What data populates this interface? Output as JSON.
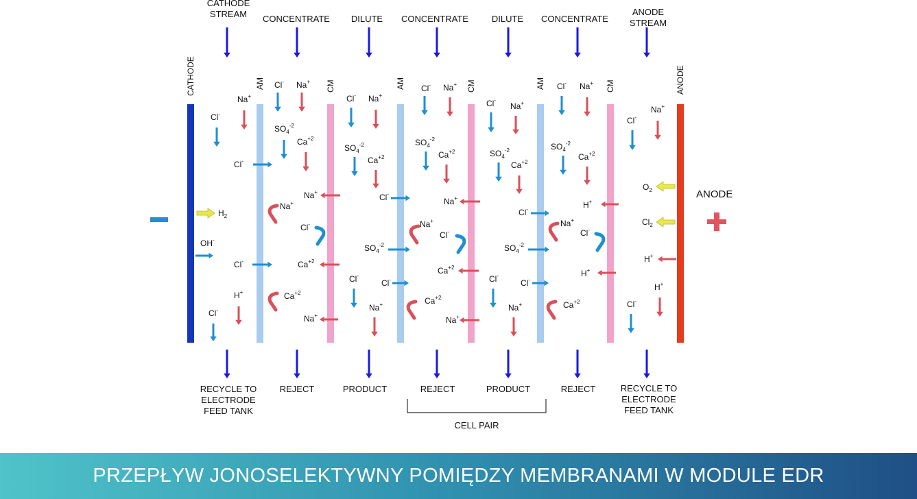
{
  "diagram": {
    "top_labels": {
      "cathode_stream": [
        "CATHODE",
        "STREAM"
      ],
      "concentrate_1": "CONCENTRATE",
      "dilute_1": "DILUTE",
      "concentrate_2": "CONCENTRATE",
      "dilute_2": "DILUTE",
      "concentrate_3": "CONCENTRATE",
      "anode_stream": [
        "ANODE",
        "STREAM"
      ]
    },
    "bottom_labels": {
      "recycle_left": [
        "RECYCLE TO",
        "ELECTRODE",
        "FEED TANK"
      ],
      "reject_1": "REJECT",
      "product_1": "PRODUCT",
      "reject_2": "REJECT",
      "product_2": "PRODUCT",
      "reject_3": "REJECT",
      "recycle_right": [
        "RECYCLE TO",
        "ELECTRODE",
        "FEED TANK"
      ]
    },
    "membrane_labels": {
      "cathode": "CATHODE",
      "anode": "ANODE",
      "am": "AM",
      "cm": "CM"
    },
    "cell_pair": "CELL PAIR",
    "anode_side_label": "ANODE",
    "ions": {
      "cl": "Cl",
      "cl_sup": "-",
      "na": "Na",
      "na_sup": "+",
      "so4": "SO",
      "so4_sub": "4",
      "so4_sup": "-2",
      "ca": "Ca",
      "ca_sup": "+2",
      "oh": "OH",
      "oh_sup": "-",
      "h": "H",
      "h_sup": "+",
      "h2": "H",
      "h2_sub": "2",
      "o2": "O",
      "o2_sub": "2",
      "cl2": "Cl",
      "cl2_sub": "2"
    },
    "colors": {
      "flow_arrow": "#1a1ae0",
      "anion_arrow": "#1e8fd0",
      "cation_arrow": "#d9505a",
      "gas_arrow": "#e8e84a",
      "cathode": "#1636b8",
      "anode": "#e53b1f",
      "am": "#a9ccef",
      "cm": "#f2a3c9"
    }
  },
  "banner": {
    "text": "PRZEPŁYW JONOSELEKTYWNY POMIĘDZY MEMBRANAMI W MODULE EDR"
  }
}
